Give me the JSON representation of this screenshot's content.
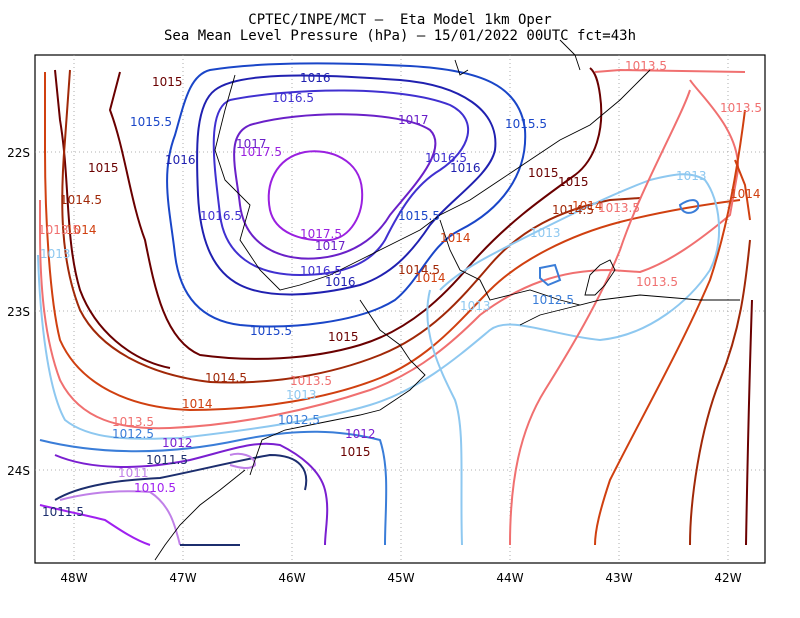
{
  "header": {
    "line1": "CPTEC/INPE/MCT –  Eta Model 1km Oper",
    "line2": "Sea Mean Level Pressure (hPa) – 15/01/2022 00UTC fct=43h"
  },
  "axes": {
    "lon_labels": [
      "48W",
      "47W",
      "46W",
      "45W",
      "44W",
      "43W",
      "42W"
    ],
    "lat_labels": [
      "22S",
      "23S",
      "24S"
    ]
  },
  "colors": {
    "1010.5": "#a020f0",
    "1011": "#c080e8",
    "1011.5": "#1c2e6e",
    "1012": "#7a1fd0",
    "1012.5": "#3a7dd8",
    "1013": "#8ec8f0",
    "1013.5": "#f07070",
    "1014": "#d04010",
    "1014.5": "#a02808",
    "1015": "#6a0000",
    "1015.5": "#1a46c8",
    "1016": "#2020b0",
    "1016.5": "#4030d0",
    "1017": "#6a20c8",
    "1017.5": "#9a20e0",
    "coast": "#000000"
  },
  "contour_labels": [
    {
      "text": "1015",
      "k": "1015"
    },
    {
      "text": "1016",
      "k": "1016"
    },
    {
      "text": "1016.5",
      "k": "1016.5"
    },
    {
      "text": "1015.5",
      "k": "1015.5"
    },
    {
      "text": "1017",
      "k": "1017"
    },
    {
      "text": "1017",
      "k": "1017"
    },
    {
      "text": "1017.5",
      "k": "1017.5"
    },
    {
      "text": "1016",
      "k": "1016"
    },
    {
      "text": "1016.5",
      "k": "1016.5"
    },
    {
      "text": "1016",
      "k": "1016"
    },
    {
      "text": "1015.5",
      "k": "1015.5"
    },
    {
      "text": "1015",
      "k": "1015"
    },
    {
      "text": "1014.5",
      "k": "1014.5"
    },
    {
      "text": "1014",
      "k": "1014"
    },
    {
      "text": "1013.5",
      "k": "1013.5"
    },
    {
      "text": "1013.5",
      "k": "1013.5"
    },
    {
      "text": "1013.5",
      "k": "1013.5"
    },
    {
      "text": "1013",
      "k": "1013"
    },
    {
      "text": "1014",
      "k": "1014"
    },
    {
      "text": "1014",
      "k": "1014"
    },
    {
      "text": "1015",
      "k": "1015"
    },
    {
      "text": "1015",
      "k": "1015"
    },
    {
      "text": "1014.5",
      "k": "1014.5"
    },
    {
      "text": "1014",
      "k": "1014"
    },
    {
      "text": "1013.5",
      "k": "1013.5"
    },
    {
      "text": "1013",
      "k": "1013"
    },
    {
      "text": "1016.5",
      "k": "1016.5"
    },
    {
      "text": "1017.5",
      "k": "1017.5"
    },
    {
      "text": "1017",
      "k": "1017"
    },
    {
      "text": "1016.5",
      "k": "1016.5"
    },
    {
      "text": "1016",
      "k": "1016"
    },
    {
      "text": "1015.5",
      "k": "1015.5"
    },
    {
      "text": "1014.5",
      "k": "1014.5"
    },
    {
      "text": "1014",
      "k": "1014"
    },
    {
      "text": "1013",
      "k": "1013"
    },
    {
      "text": "1012.5",
      "k": "1012.5"
    },
    {
      "text": "1013.5",
      "k": "1013.5"
    },
    {
      "text": "1013",
      "k": "1013"
    },
    {
      "text": "1015.5",
      "k": "1015.5"
    },
    {
      "text": "1015",
      "k": "1015"
    },
    {
      "text": "1014.5",
      "k": "1014.5"
    },
    {
      "text": "1013.5",
      "k": "1013.5"
    },
    {
      "text": "1014",
      "k": "1014"
    },
    {
      "text": "1013",
      "k": "1013"
    },
    {
      "text": "1013.5",
      "k": "1013.5"
    },
    {
      "text": "1012.5",
      "k": "1012.5"
    },
    {
      "text": "1012",
      "k": "1012"
    },
    {
      "text": "1011.5",
      "k": "1011.5"
    },
    {
      "text": "1011",
      "k": "1011"
    },
    {
      "text": "1010.5",
      "k": "1010.5"
    },
    {
      "text": "1011.5",
      "k": "1011.5"
    },
    {
      "text": "1012.5",
      "k": "1012.5"
    },
    {
      "text": "1012",
      "k": "1012"
    },
    {
      "text": "1015",
      "k": "1015"
    }
  ]
}
